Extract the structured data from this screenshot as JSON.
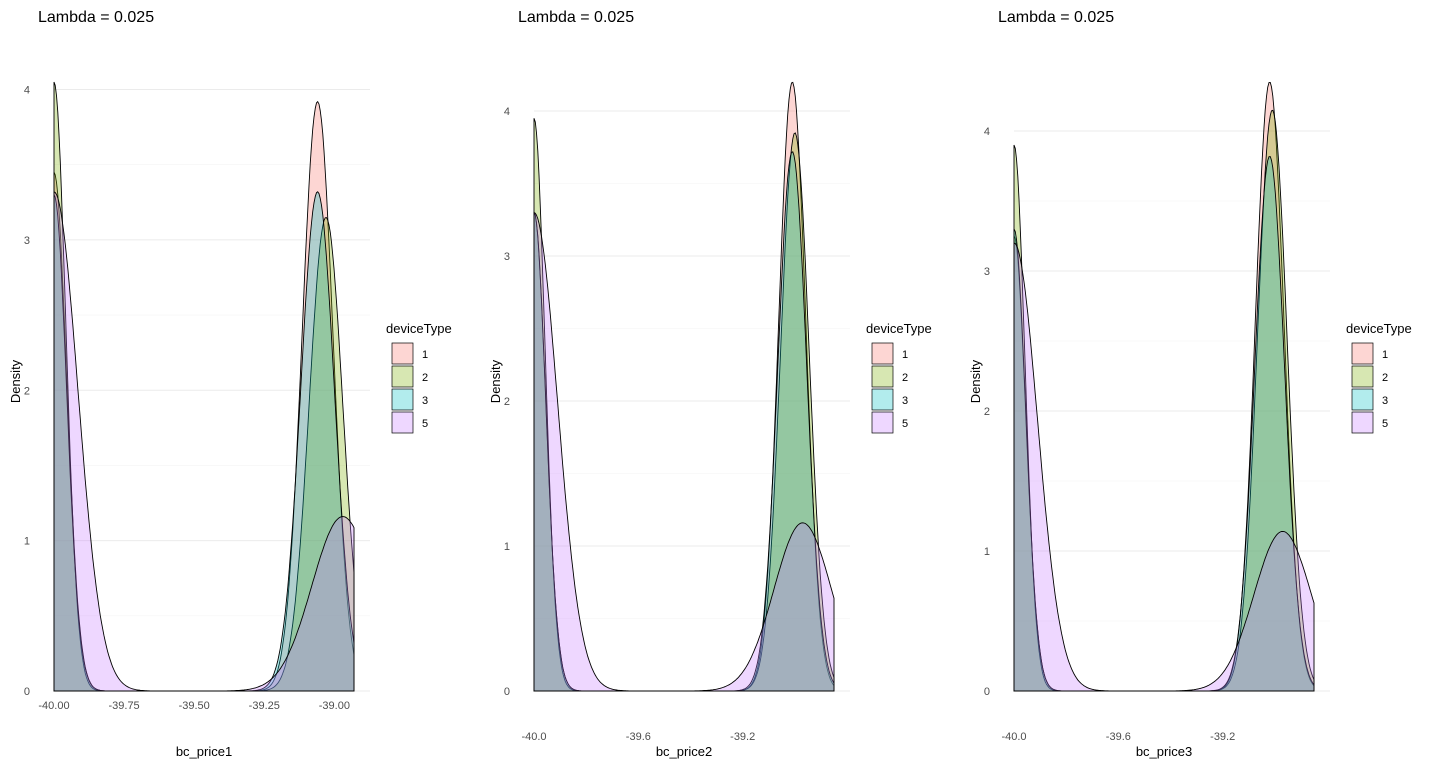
{
  "legend": {
    "title": "deviceType",
    "entries": [
      {
        "label": "1",
        "color": "#F8766D"
      },
      {
        "label": "2",
        "color": "#7CAE00"
      },
      {
        "label": "3",
        "color": "#00BFC4"
      },
      {
        "label": "5",
        "color": "#C77CFF"
      }
    ]
  },
  "chart_data": [
    {
      "type": "area",
      "title": "Lambda =  0.025",
      "xlabel": "bc_price1",
      "ylabel": "Density",
      "xlim": [
        -40.0,
        -38.93
      ],
      "ylim": [
        0,
        4.05
      ],
      "x_ticks": [
        -40.0,
        -39.75,
        -39.5,
        -39.25,
        -39.0
      ],
      "x_tick_labels": [
        "-40.00",
        "-39.75",
        "-39.50",
        "-39.25",
        "-39.00"
      ],
      "y_ticks": [
        0,
        1,
        2,
        3,
        4
      ],
      "y_tick_labels": [
        "0",
        "1",
        "2",
        "3",
        "4"
      ],
      "series": [
        {
          "name": "1",
          "left": {
            "peak": 3.45,
            "width": 0.045
          },
          "right": {
            "center": -39.06,
            "peak": 3.92,
            "width": 0.055
          }
        },
        {
          "name": "2",
          "left": {
            "peak": 4.05,
            "width": 0.042
          },
          "right": {
            "center": -39.03,
            "peak": 3.15,
            "width": 0.06
          }
        },
        {
          "name": "3",
          "left": {
            "peak": 3.3,
            "width": 0.045
          },
          "right": {
            "center": -39.06,
            "peak": 3.32,
            "width": 0.06
          }
        },
        {
          "name": "5",
          "left": {
            "peak": 3.32,
            "width": 0.085
          },
          "right": {
            "center": -38.97,
            "peak": 1.16,
            "width": 0.11
          }
        }
      ]
    },
    {
      "type": "area",
      "title": "Lambda =  0.025",
      "xlabel": "bc_price2",
      "ylabel": "Density",
      "xlim": [
        -40.0,
        -38.85
      ],
      "ylim": [
        0,
        4.2
      ],
      "x_ticks": [
        -40.0,
        -39.6,
        -39.2
      ],
      "x_tick_labels": [
        "-40.0",
        "-39.6",
        "-39.2"
      ],
      "y_ticks": [
        0,
        1,
        2,
        3,
        4
      ],
      "y_tick_labels": [
        "0",
        "1",
        "2",
        "3",
        "4"
      ],
      "series": [
        {
          "name": "1",
          "left": {
            "peak": 3.3,
            "width": 0.045
          },
          "right": {
            "center": -39.01,
            "peak": 4.2,
            "width": 0.052
          }
        },
        {
          "name": "2",
          "left": {
            "peak": 3.95,
            "width": 0.042
          },
          "right": {
            "center": -39.0,
            "peak": 3.85,
            "width": 0.055
          }
        },
        {
          "name": "3",
          "left": {
            "peak": 3.3,
            "width": 0.045
          },
          "right": {
            "center": -39.01,
            "peak": 3.72,
            "width": 0.055
          }
        },
        {
          "name": "5",
          "left": {
            "peak": 3.3,
            "width": 0.09
          },
          "right": {
            "center": -38.97,
            "peak": 1.16,
            "width": 0.11
          }
        }
      ]
    },
    {
      "type": "area",
      "title": "Lambda =  0.025",
      "xlabel": "bc_price3",
      "ylabel": "Density",
      "xlim": [
        -40.0,
        -38.85
      ],
      "ylim": [
        0,
        4.35
      ],
      "x_ticks": [
        -40.0,
        -39.6,
        -39.2
      ],
      "x_tick_labels": [
        "-40.0",
        "-39.6",
        "-39.2"
      ],
      "y_ticks": [
        0,
        1,
        2,
        3,
        4
      ],
      "y_tick_labels": [
        "0",
        "1",
        "2",
        "3",
        "4"
      ],
      "series": [
        {
          "name": "1",
          "left": {
            "peak": 3.25,
            "width": 0.045
          },
          "right": {
            "center": -39.02,
            "peak": 4.35,
            "width": 0.055
          }
        },
        {
          "name": "2",
          "left": {
            "peak": 3.9,
            "width": 0.042
          },
          "right": {
            "center": -39.01,
            "peak": 4.15,
            "width": 0.057
          }
        },
        {
          "name": "3",
          "left": {
            "peak": 3.3,
            "width": 0.045
          },
          "right": {
            "center": -39.02,
            "peak": 3.82,
            "width": 0.057
          }
        },
        {
          "name": "5",
          "left": {
            "peak": 3.2,
            "width": 0.09
          },
          "right": {
            "center": -38.97,
            "peak": 1.14,
            "width": 0.11
          }
        }
      ]
    }
  ]
}
